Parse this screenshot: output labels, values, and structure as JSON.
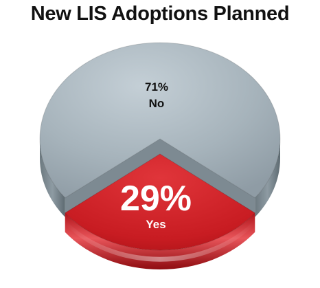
{
  "chart_data": {
    "type": "pie",
    "title": "New LIS Adoptions Planned",
    "slices": [
      {
        "label": "No",
        "value": 71,
        "value_text": "71%",
        "color": "#a7b4bc"
      },
      {
        "label": "Yes",
        "value": 29,
        "value_text": "29%",
        "color": "#cc1f24"
      }
    ],
    "style": "3d-exploded"
  }
}
